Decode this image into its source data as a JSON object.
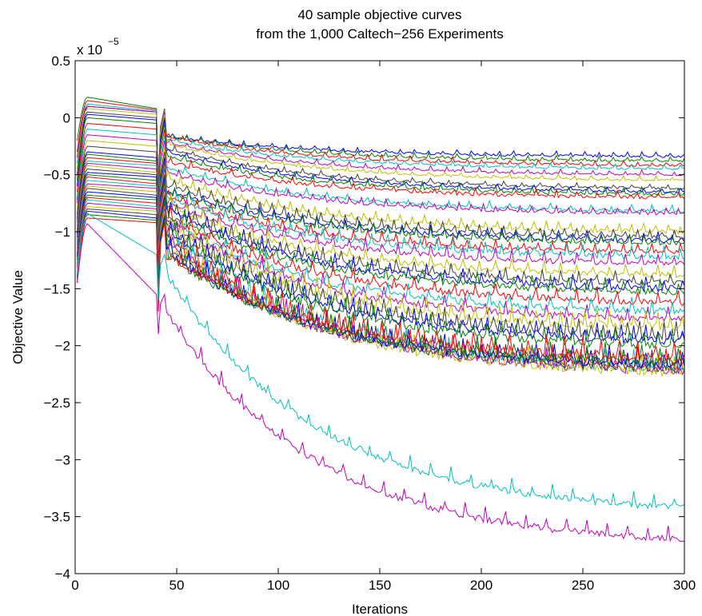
{
  "chart_data": {
    "type": "line",
    "title": [
      "40 sample objective curves",
      "from the 1,000 Caltech−256 Experiments"
    ],
    "xlabel": "Iterations",
    "ylabel": "Objective Value",
    "y_scale_base": "x 10",
    "y_scale_exp": "−5",
    "xlim": [
      0,
      300
    ],
    "ylim": [
      -4,
      0.5
    ],
    "x_ticks": [
      0,
      50,
      100,
      150,
      200,
      250,
      300
    ],
    "x_tick_labels": [
      "0",
      "50",
      "100",
      "150",
      "200",
      "250",
      "300"
    ],
    "y_ticks": [
      -4,
      -3.5,
      -3,
      -2.5,
      -2,
      -1.5,
      -1,
      -0.5,
      0,
      0.5
    ],
    "y_tick_labels": [
      "−4",
      "−3.5",
      "−3",
      "−2.5",
      "−2",
      "−1.5",
      "−1",
      "−0.5",
      "0",
      "0.5"
    ],
    "grid": false,
    "legend": "none",
    "palette": [
      "#0000ff",
      "#008000",
      "#ff0000",
      "#00bfbf",
      "#bf00bf",
      "#bfbf00",
      "#404040"
    ],
    "series": [
      {
        "start": -0.72,
        "peak": 0.1,
        "plateau": 0.05,
        "jump": -0.55,
        "end": -0.34,
        "noise": 0.01
      },
      {
        "start": -0.2,
        "peak": 0.18,
        "plateau": 0.08,
        "jump": -0.6,
        "end": -0.38,
        "noise": 0.01
      },
      {
        "start": -0.3,
        "peak": 0.15,
        "plateau": 0.07,
        "jump": -0.6,
        "end": -0.42,
        "noise": 0.01
      },
      {
        "start": -0.4,
        "peak": 0.12,
        "plateau": 0.06,
        "jump": -0.65,
        "end": -0.45,
        "noise": 0.01
      },
      {
        "start": -0.35,
        "peak": 0.1,
        "plateau": 0.05,
        "jump": -0.7,
        "end": -0.5,
        "noise": 0.01
      },
      {
        "start": -0.45,
        "peak": 0.08,
        "plateau": 0.03,
        "jump": -0.7,
        "end": -0.55,
        "noise": 0.01
      },
      {
        "start": -0.5,
        "peak": 0.05,
        "plateau": 0.0,
        "jump": -0.75,
        "end": -0.62,
        "noise": 0.01
      },
      {
        "start": -0.6,
        "peak": 0.03,
        "plateau": -0.02,
        "jump": -0.8,
        "end": -0.65,
        "noise": 0.01
      },
      {
        "start": -0.55,
        "peak": 0.0,
        "plateau": -0.05,
        "jump": -0.85,
        "end": -0.67,
        "noise": 0.015
      },
      {
        "start": -0.65,
        "peak": -0.05,
        "plateau": -0.1,
        "jump": -0.9,
        "end": -0.7,
        "noise": 0.015
      },
      {
        "start": -0.7,
        "peak": -0.1,
        "plateau": -0.15,
        "jump": -0.95,
        "end": -0.82,
        "noise": 0.015
      },
      {
        "start": -0.75,
        "peak": -0.15,
        "plateau": -0.2,
        "jump": -1.0,
        "end": -0.84,
        "noise": 0.015
      },
      {
        "start": -0.8,
        "peak": -0.2,
        "plateau": -0.25,
        "jump": -1.05,
        "end": -1.0,
        "noise": 0.02
      },
      {
        "start": -0.85,
        "peak": -0.25,
        "plateau": -0.3,
        "jump": -1.1,
        "end": -1.05,
        "noise": 0.02
      },
      {
        "start": -0.88,
        "peak": -0.3,
        "plateau": -0.35,
        "jump": -1.15,
        "end": -1.08,
        "noise": 0.02
      },
      {
        "start": -0.9,
        "peak": -0.32,
        "plateau": -0.38,
        "jump": -1.15,
        "end": -1.1,
        "noise": 0.02
      },
      {
        "start": -0.92,
        "peak": -0.35,
        "plateau": -0.4,
        "jump": -1.2,
        "end": -1.18,
        "noise": 0.02
      },
      {
        "start": -0.95,
        "peak": -0.38,
        "plateau": -0.42,
        "jump": -1.2,
        "end": -1.22,
        "noise": 0.025
      },
      {
        "start": -0.98,
        "peak": -0.4,
        "plateau": -0.45,
        "jump": -1.25,
        "end": -1.28,
        "noise": 0.025
      },
      {
        "start": -1.0,
        "peak": -0.42,
        "plateau": -0.48,
        "jump": -1.25,
        "end": -1.38,
        "noise": 0.025
      },
      {
        "start": -1.02,
        "peak": -0.45,
        "plateau": -0.5,
        "jump": -1.3,
        "end": -1.45,
        "noise": 0.025
      },
      {
        "start": -1.05,
        "peak": -0.48,
        "plateau": -0.52,
        "jump": -1.3,
        "end": -1.5,
        "noise": 0.03
      },
      {
        "start": -1.08,
        "peak": -0.5,
        "plateau": -0.55,
        "jump": -1.35,
        "end": -1.53,
        "noise": 0.03
      },
      {
        "start": -1.1,
        "peak": -0.52,
        "plateau": -0.58,
        "jump": -1.35,
        "end": -1.62,
        "noise": 0.03
      },
      {
        "start": -1.12,
        "peak": -0.55,
        "plateau": -0.6,
        "jump": -1.4,
        "end": -1.7,
        "noise": 0.03
      },
      {
        "start": -1.15,
        "peak": -0.58,
        "plateau": -0.62,
        "jump": -1.4,
        "end": -1.77,
        "noise": 0.03
      },
      {
        "start": -1.18,
        "peak": -0.6,
        "plateau": -0.65,
        "jump": -1.45,
        "end": -1.84,
        "noise": 0.035
      },
      {
        "start": -1.2,
        "peak": -0.62,
        "plateau": -0.68,
        "jump": -1.45,
        "end": -1.92,
        "noise": 0.035
      },
      {
        "start": -1.22,
        "peak": -0.65,
        "plateau": -0.7,
        "jump": -1.5,
        "end": -1.96,
        "noise": 0.035
      },
      {
        "start": -1.25,
        "peak": -0.68,
        "plateau": -0.72,
        "jump": -1.5,
        "end": -2.0,
        "noise": 0.04
      },
      {
        "start": -1.28,
        "peak": -0.7,
        "plateau": -0.75,
        "jump": -1.55,
        "end": -2.18,
        "noise": 0.04
      },
      {
        "start": -1.3,
        "peak": -0.72,
        "plateau": -0.78,
        "jump": -1.55,
        "end": -2.2,
        "noise": 0.04
      },
      {
        "start": -1.32,
        "peak": -0.75,
        "plateau": -0.8,
        "jump": -1.6,
        "end": -2.22,
        "noise": 0.04
      },
      {
        "start": -1.35,
        "peak": -0.78,
        "plateau": -0.82,
        "jump": -1.6,
        "end": -2.23,
        "noise": 0.04
      },
      {
        "start": -1.38,
        "peak": -0.8,
        "plateau": -0.85,
        "jump": -1.65,
        "end": -2.2,
        "noise": 0.04
      },
      {
        "start": -1.4,
        "peak": -0.82,
        "plateau": -0.88,
        "jump": -1.65,
        "end": -2.17,
        "noise": 0.04
      },
      {
        "start": -1.42,
        "peak": -0.85,
        "plateau": -0.9,
        "jump": -1.7,
        "end": -2.15,
        "noise": 0.04
      },
      {
        "start": -1.45,
        "peak": -0.88,
        "plateau": -0.92,
        "jump": -1.7,
        "end": -2.1,
        "noise": 0.04
      },
      {
        "start": -1.38,
        "peak": -0.84,
        "plateau": -1.2,
        "jump": -1.6,
        "end": -3.42,
        "noise": 0.03
      },
      {
        "start": -1.45,
        "peak": -0.93,
        "plateau": -1.55,
        "jump": -1.9,
        "end": -3.7,
        "noise": 0.03
      }
    ]
  }
}
